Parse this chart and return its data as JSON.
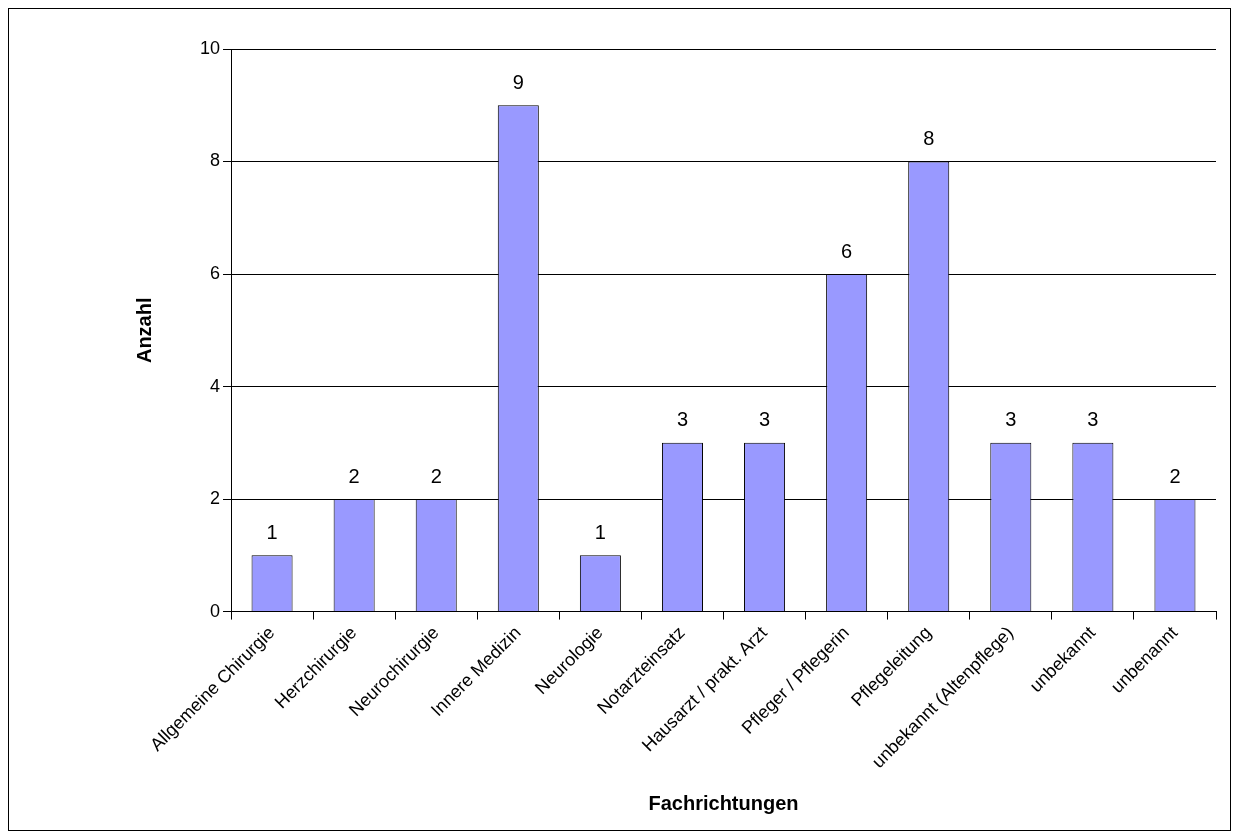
{
  "chart_data": {
    "type": "bar",
    "xlabel": "Fachrichtungen",
    "ylabel": "Anzahl",
    "categories": [
      "Allgemeine Chirurgie",
      "Herzchirurgie",
      "Neurochirurgie",
      "Innere Medizin",
      "Neurologie",
      "Notarzteinsatz",
      "Hausarzt / prakt. Arzt",
      "Pfleger / Pflegerin",
      "Pflegeleitung",
      "unbekannt (Altenpflege)",
      "unbekannt",
      "unbenannt"
    ],
    "values": [
      1,
      2,
      2,
      9,
      1,
      3,
      3,
      6,
      8,
      3,
      3,
      2
    ],
    "color": "#9999ff",
    "ylim": [
      0,
      10
    ],
    "yticks": [
      0,
      2,
      4,
      6,
      8,
      10
    ],
    "grid": "y",
    "data_labels": true,
    "legend": false
  }
}
